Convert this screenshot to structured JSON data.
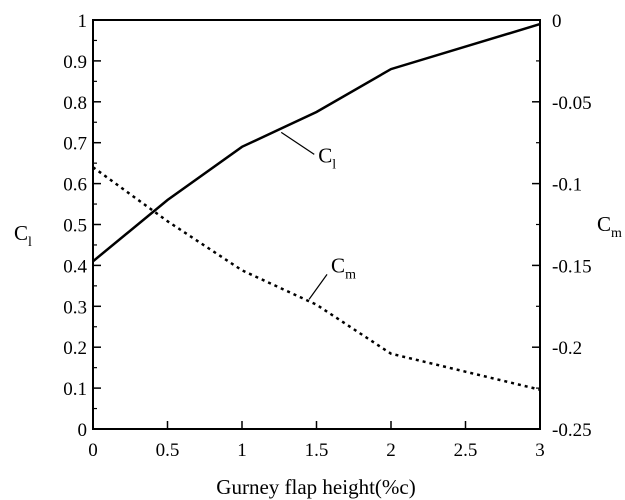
{
  "chart_data": {
    "type": "line",
    "xlabel": "Gurney flap height(%c)",
    "ylabel": {
      "main": "C",
      "sub": "l"
    },
    "y2label": {
      "main": "C",
      "sub": "m"
    },
    "xlim": [
      0,
      3
    ],
    "ylim": [
      0,
      1
    ],
    "y2lim": [
      -0.25,
      0
    ],
    "x_ticks": [
      "0",
      "0.5",
      "1",
      "1.5",
      "2",
      "2.5",
      "3"
    ],
    "y_ticks": [
      "0",
      "0.1",
      "0.2",
      "0.3",
      "0.4",
      "0.5",
      "0.6",
      "0.7",
      "0.8",
      "0.9",
      "1"
    ],
    "y2_ticks": [
      "-0.25",
      "-0.2",
      "-0.15",
      "-0.1",
      "-0.05",
      "0"
    ],
    "grid": false,
    "series": [
      {
        "name": "Cl",
        "label_main": "C",
        "label_sub": "l",
        "axis": "left",
        "style": "solid",
        "x": [
          0,
          0.5,
          1,
          1.5,
          2,
          3
        ],
        "values": [
          0.41,
          0.56,
          0.69,
          0.775,
          0.88,
          0.99
        ]
      },
      {
        "name": "Cm",
        "label_main": "C",
        "label_sub": "m",
        "axis": "right",
        "style": "dotted",
        "x": [
          0,
          0.5,
          1,
          1.5,
          2,
          3
        ],
        "values": [
          -0.09,
          -0.123,
          -0.153,
          -0.174,
          -0.204,
          -0.226
        ]
      }
    ],
    "colors": {
      "line": "#000000",
      "axis": "#000000"
    }
  }
}
